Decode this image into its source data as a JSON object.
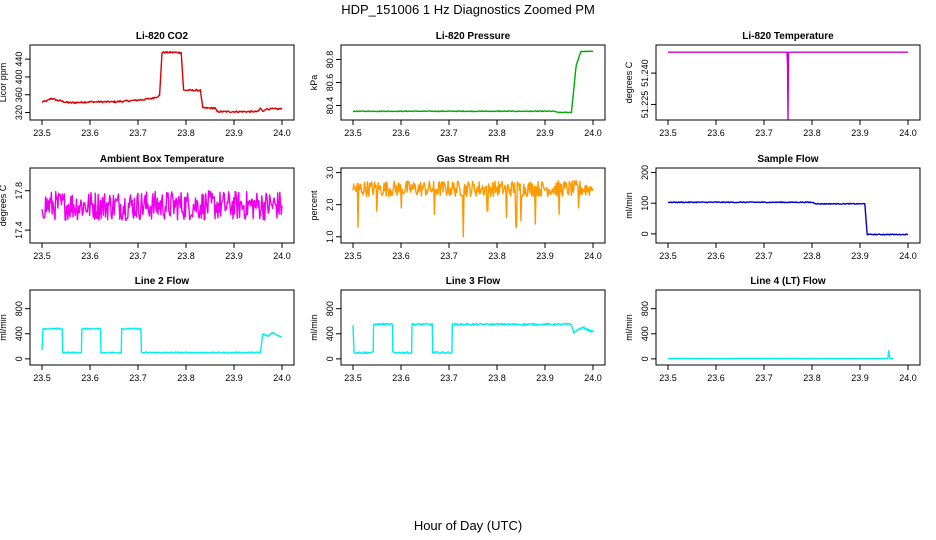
{
  "title": "HDP_151006  1 Hz Diagnostics Zoomed PM",
  "xlabel": "Hour of Day (UTC)",
  "chart_data": [
    {
      "type": "line",
      "title": "Li-820 CO2",
      "ylabel": "Licor ppm",
      "color": "#dd0000",
      "xlim": [
        23.5,
        24.0
      ],
      "ylim": [
        310,
        465
      ],
      "xticks": [
        23.5,
        23.6,
        23.7,
        23.8,
        23.9,
        24.0
      ],
      "xtick_labels": [
        "23.5",
        "23.6",
        "23.7",
        "23.8",
        "23.9",
        "24.0"
      ],
      "yticks": [
        320,
        360,
        400,
        440
      ],
      "ytick_labels": [
        "320",
        "360",
        "400",
        "440"
      ],
      "series": [
        {
          "points": [
            [
              23.5,
              344
            ],
            [
              23.51,
              346
            ],
            [
              23.52,
              352
            ],
            [
              23.53,
              348
            ],
            [
              23.54,
              346
            ],
            [
              23.55,
              343
            ],
            [
              23.56,
              342
            ],
            [
              23.6,
              344
            ],
            [
              23.65,
              344
            ],
            [
              23.68,
              346
            ],
            [
              23.71,
              349
            ],
            [
              23.73,
              352
            ],
            [
              23.745,
              358
            ],
            [
              23.75,
              455
            ],
            [
              23.79,
              455
            ],
            [
              23.795,
              370
            ],
            [
              23.83,
              370
            ],
            [
              23.835,
              330
            ],
            [
              23.86,
              330
            ],
            [
              23.865,
              322
            ],
            [
              23.95,
              322
            ],
            [
              23.955,
              330
            ],
            [
              23.96,
              322
            ],
            [
              23.965,
              328
            ],
            [
              24.0,
              328
            ]
          ],
          "noise": 2
        }
      ]
    },
    {
      "type": "line",
      "title": "Li-820 Pressure",
      "ylabel": "kPa",
      "color": "#00aa00",
      "xlim": [
        23.5,
        24.0
      ],
      "ylim": [
        80.3,
        80.9
      ],
      "xticks": [
        23.5,
        23.6,
        23.7,
        23.8,
        23.9,
        24.0
      ],
      "xtick_labels": [
        "23.5",
        "23.6",
        "23.7",
        "23.8",
        "23.9",
        "24.0"
      ],
      "yticks": [
        80.4,
        80.6,
        80.8
      ],
      "ytick_labels": [
        "80.4",
        "80.6",
        "80.8"
      ],
      "series": [
        {
          "points": [
            [
              23.5,
              80.35
            ],
            [
              23.92,
              80.35
            ],
            [
              23.925,
              80.34
            ],
            [
              23.955,
              80.34
            ],
            [
              23.965,
              80.75
            ],
            [
              23.975,
              80.87
            ],
            [
              24.0,
              80.87
            ]
          ],
          "noise": 0.003
        }
      ]
    },
    {
      "type": "line",
      "title": "Li-820 Temperature",
      "ylabel": "degrees C",
      "color": "#cc00cc",
      "xlim": [
        23.5,
        24.0
      ],
      "ylim": [
        51.219,
        51.252
      ],
      "xticks": [
        23.5,
        23.6,
        23.7,
        23.8,
        23.9,
        24.0
      ],
      "xtick_labels": [
        "23.5",
        "23.6",
        "23.7",
        "23.8",
        "23.9",
        "24.0"
      ],
      "yticks": [
        51.225,
        51.24
      ],
      "ytick_labels": [
        "51.225",
        "51.240"
      ],
      "series": [
        {
          "points": [
            [
              23.5,
              51.25
            ],
            [
              23.748,
              51.25
            ],
            [
              23.749,
              51.244
            ],
            [
              23.75,
              51.218
            ],
            [
              23.751,
              51.25
            ],
            [
              24.0,
              51.25
            ]
          ],
          "noise": 0
        }
      ]
    },
    {
      "type": "line",
      "title": "Ambient Box Temperature",
      "ylabel": "degrees C",
      "color": "#ee00ee",
      "xlim": [
        23.5,
        24.0
      ],
      "ylim": [
        17.3,
        18.0
      ],
      "xticks": [
        23.5,
        23.6,
        23.7,
        23.8,
        23.9,
        24.0
      ],
      "xtick_labels": [
        "23.5",
        "23.6",
        "23.7",
        "23.8",
        "23.9",
        "24.0"
      ],
      "yticks": [
        17.4,
        17.8
      ],
      "ytick_labels": [
        "17.4",
        "17.8"
      ],
      "series": [
        {
          "points": [
            [
              23.5,
              17.65
            ],
            [
              24.0,
              17.65
            ]
          ],
          "noise": 0.15
        }
      ]
    },
    {
      "type": "line",
      "title": "Gas Stream RH",
      "ylabel": "percent",
      "color": "#ff9900",
      "xlim": [
        23.5,
        24.0
      ],
      "ylim": [
        0.9,
        3.05
      ],
      "xticks": [
        23.5,
        23.6,
        23.7,
        23.8,
        23.9,
        24.0
      ],
      "xtick_labels": [
        "23.5",
        "23.6",
        "23.7",
        "23.8",
        "23.9",
        "24.0"
      ],
      "yticks": [
        1.0,
        2.0,
        3.0
      ],
      "ytick_labels": [
        "1.0",
        "2.0",
        "3.0"
      ],
      "series": [
        {
          "points": [
            [
              23.5,
              2.5
            ],
            [
              24.0,
              2.5
            ]
          ],
          "noise": 0.25,
          "dips": [
            [
              23.51,
              1.3
            ],
            [
              23.55,
              1.8
            ],
            [
              23.6,
              1.9
            ],
            [
              23.67,
              1.7
            ],
            [
              23.73,
              1.0
            ],
            [
              23.78,
              1.8
            ],
            [
              23.82,
              1.6
            ],
            [
              23.84,
              1.3
            ],
            [
              23.85,
              1.5
            ],
            [
              23.88,
              1.4
            ],
            [
              23.93,
              1.7
            ],
            [
              23.97,
              1.9
            ]
          ]
        }
      ]
    },
    {
      "type": "line",
      "title": "Sample Flow",
      "ylabel": "ml/min",
      "color": "#0000cc",
      "xlim": [
        23.5,
        24.0
      ],
      "ylim": [
        -20,
        205
      ],
      "xticks": [
        23.5,
        23.6,
        23.7,
        23.8,
        23.9,
        24.0
      ],
      "xtick_labels": [
        "23.5",
        "23.6",
        "23.7",
        "23.8",
        "23.9",
        "24.0"
      ],
      "yticks": [
        0,
        100,
        200
      ],
      "ytick_labels": [
        "0",
        "100",
        "200"
      ],
      "series": [
        {
          "points": [
            [
              23.5,
              103
            ],
            [
              23.8,
              103
            ],
            [
              23.81,
              98
            ],
            [
              23.91,
              98
            ],
            [
              23.915,
              -2
            ],
            [
              24.0,
              -2
            ]
          ],
          "noise": 1.5
        }
      ]
    },
    {
      "type": "line",
      "title": "Line 2 Flow",
      "ylabel": "ml/min",
      "color": "#00eeee",
      "xlim": [
        23.5,
        24.0
      ],
      "ylim": [
        -50,
        1050
      ],
      "xticks": [
        23.5,
        23.6,
        23.7,
        23.8,
        23.9,
        24.0
      ],
      "xtick_labels": [
        "23.5",
        "23.6",
        "23.7",
        "23.8",
        "23.9",
        "24.0"
      ],
      "yticks": [
        0,
        400,
        800
      ],
      "ytick_labels": [
        "0",
        "400",
        "800"
      ],
      "series": [
        {
          "points": [
            [
              23.5,
              150
            ],
            [
              23.502,
              480
            ],
            [
              23.542,
              480
            ],
            [
              23.543,
              100
            ],
            [
              23.582,
              100
            ],
            [
              23.583,
              480
            ],
            [
              23.622,
              480
            ],
            [
              23.623,
              100
            ],
            [
              23.665,
              100
            ],
            [
              23.666,
              480
            ],
            [
              23.706,
              480
            ],
            [
              23.707,
              100
            ],
            [
              23.955,
              100
            ],
            [
              23.96,
              400
            ],
            [
              23.97,
              360
            ],
            [
              23.98,
              420
            ],
            [
              23.99,
              380
            ],
            [
              24.0,
              350
            ]
          ],
          "noise": 10
        }
      ]
    },
    {
      "type": "line",
      "title": "Line 3 Flow",
      "ylabel": "ml/min",
      "color": "#00eeee",
      "xlim": [
        23.5,
        24.0
      ],
      "ylim": [
        -50,
        1050
      ],
      "xticks": [
        23.5,
        23.6,
        23.7,
        23.8,
        23.9,
        24.0
      ],
      "xtick_labels": [
        "23.5",
        "23.6",
        "23.7",
        "23.8",
        "23.9",
        "24.0"
      ],
      "yticks": [
        0,
        400,
        800
      ],
      "ytick_labels": [
        "0",
        "400",
        "800"
      ],
      "series": [
        {
          "points": [
            [
              23.5,
              550
            ],
            [
              23.502,
              100
            ],
            [
              23.542,
              100
            ],
            [
              23.543,
              550
            ],
            [
              23.582,
              550
            ],
            [
              23.583,
              100
            ],
            [
              23.622,
              100
            ],
            [
              23.623,
              550
            ],
            [
              23.665,
              550
            ],
            [
              23.666,
              100
            ],
            [
              23.706,
              100
            ],
            [
              23.707,
              550
            ],
            [
              23.955,
              550
            ],
            [
              23.96,
              420
            ],
            [
              23.97,
              470
            ],
            [
              23.98,
              500
            ],
            [
              23.99,
              460
            ],
            [
              24.0,
              430
            ]
          ],
          "noise": 15
        }
      ]
    },
    {
      "type": "line",
      "title": "Line 4 (LT) Flow",
      "ylabel": "ml/min",
      "color": "#00eeee",
      "xlim": [
        23.5,
        24.0
      ],
      "ylim": [
        -50,
        1050
      ],
      "xticks": [
        23.5,
        23.6,
        23.7,
        23.8,
        23.9,
        24.0
      ],
      "xtick_labels": [
        "23.5",
        "23.6",
        "23.7",
        "23.8",
        "23.9",
        "24.0"
      ],
      "yticks": [
        0,
        400,
        800
      ],
      "ytick_labels": [
        "0",
        "400",
        "800"
      ],
      "series": [
        {
          "points": [
            [
              23.5,
              5
            ],
            [
              23.958,
              5
            ],
            [
              23.96,
              130
            ],
            [
              23.962,
              5
            ],
            [
              23.97,
              5
            ]
          ],
          "noise": 2
        }
      ]
    }
  ]
}
